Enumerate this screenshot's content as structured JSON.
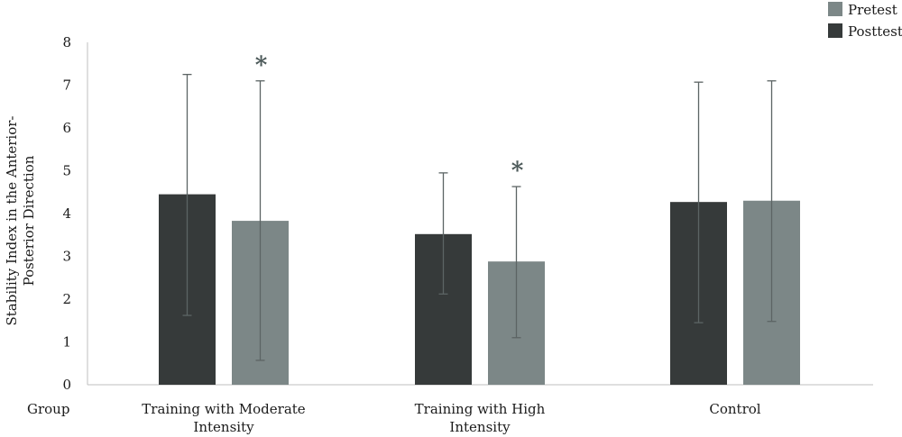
{
  "chart_data": {
    "type": "bar",
    "categories": [
      "Training with Moderate Intensity",
      "Training with High Intensity",
      "Control"
    ],
    "category_lines": [
      [
        "Training with Moderate",
        "Intensity"
      ],
      [
        "Training with High",
        "Intensity"
      ],
      [
        "Control"
      ]
    ],
    "x_axis_label": "Group",
    "ylabel_lines": [
      "Stability Index in the Anterior-",
      "Posterior Direction"
    ],
    "ylim": [
      0,
      8
    ],
    "yticks": [
      0,
      1,
      2,
      3,
      4,
      5,
      6,
      7,
      8
    ],
    "grid": false,
    "legend_position": "top-right",
    "series": [
      {
        "name": "Posttest",
        "color": "#363a3a",
        "values": [
          4.45,
          3.52,
          4.27
        ],
        "error_low": [
          1.62,
          2.12,
          1.45
        ],
        "error_high": [
          7.25,
          4.95,
          7.07
        ]
      },
      {
        "name": "Pretest",
        "color": "#7c8787",
        "values": [
          3.83,
          2.88,
          4.3
        ],
        "error_low": [
          0.57,
          1.1,
          1.48
        ],
        "error_high": [
          7.1,
          4.63,
          7.1
        ]
      }
    ],
    "legend_order": [
      "Pretest",
      "Posttest"
    ],
    "annotations": [
      {
        "text": "*",
        "category_index": 0,
        "series_index": 1
      },
      {
        "text": "*",
        "category_index": 1,
        "series_index": 1
      }
    ]
  }
}
